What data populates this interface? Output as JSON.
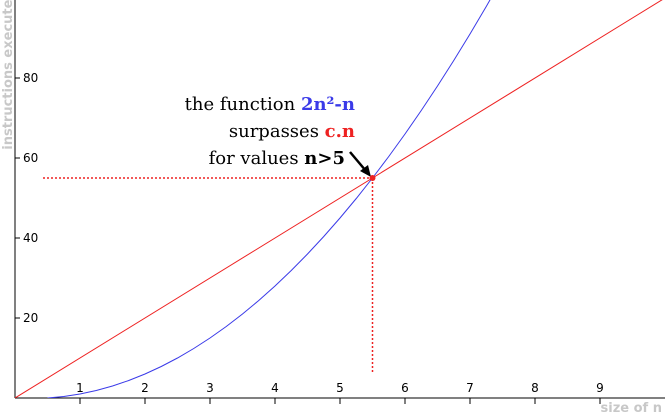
{
  "chart_data": {
    "type": "line",
    "y_label": "instructions executed",
    "x_label": "size of n",
    "xlim": [
      0,
      10
    ],
    "ylim": [
      0,
      99.5
    ],
    "xticks": [
      1,
      2,
      3,
      4,
      5,
      6,
      7,
      8,
      9
    ],
    "yticks": [
      20,
      40,
      60,
      80
    ],
    "series": [
      {
        "name": "2n²-n",
        "color": "#3a3ae8",
        "x": [
          0.5,
          0.75,
          1,
          1.25,
          1.5,
          1.75,
          2,
          2.25,
          2.5,
          2.75,
          3,
          3.25,
          3.5,
          3.75,
          4,
          4.25,
          4.5,
          4.75,
          5,
          5.25,
          5.5,
          5.75,
          6,
          6.25,
          6.5,
          6.75,
          7,
          7.25,
          7.5
        ],
        "values": [
          0,
          0.375,
          1,
          1.875,
          3,
          4.375,
          6,
          7.875,
          10,
          12.375,
          15,
          17.875,
          21,
          24.375,
          28,
          31.875,
          36,
          40.375,
          45,
          49.875,
          55,
          60.375,
          66,
          71.875,
          78,
          84.375,
          91,
          97.875,
          105
        ]
      },
      {
        "name": "c.n",
        "color": "#ee2222",
        "x": [
          0,
          10
        ],
        "values": [
          0,
          100
        ]
      }
    ],
    "highlight": {
      "x": 5.5,
      "y": 55
    },
    "annotation": [
      "the function",
      "surpasses",
      "for values",
      "n>5"
    ]
  }
}
